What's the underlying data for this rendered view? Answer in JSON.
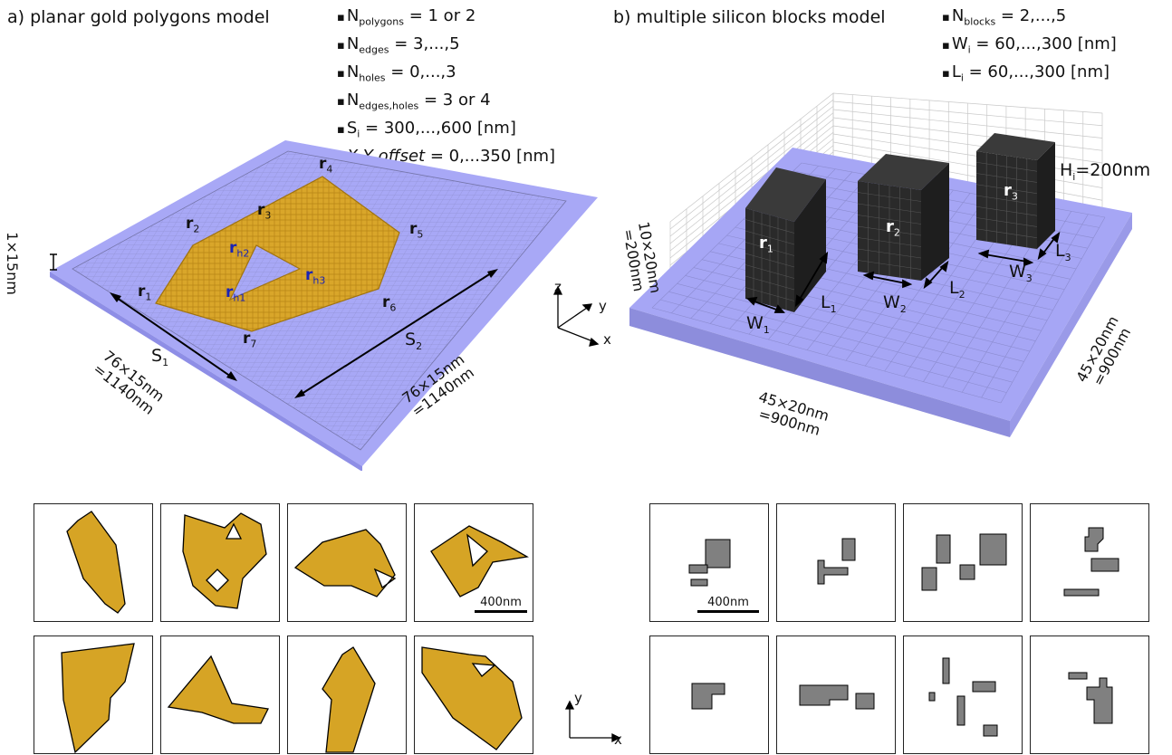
{
  "left_model": {
    "title": "a) planar gold polygons model",
    "params": [
      {
        "name": "N",
        "sub": "polygons",
        "value": " = 1 or 2"
      },
      {
        "name": "N",
        "sub": "edges",
        "value": " = 3,...,5"
      },
      {
        "name": "N",
        "sub": "holes",
        "value": " = 0,...,3"
      },
      {
        "name": "N",
        "sub": "edges,holes",
        "value": " = 3 or 4"
      },
      {
        "name": "S",
        "sub": "i",
        "value": " = 300,...,600 [nm]"
      },
      {
        "name": "X,Y offset",
        "sub": "",
        "value": " = 0,...350 [nm]"
      }
    ],
    "vertex_labels": [
      "r1",
      "r2",
      "r3",
      "r4",
      "r5",
      "r6",
      "r7"
    ],
    "hole_labels": [
      "rh1",
      "rh2",
      "rh3"
    ],
    "side_labels": {
      "s1": "S1",
      "s2": "S2"
    },
    "thickness": "1×15nm",
    "dim_front": [
      "76×15nm",
      "=1140nm"
    ],
    "dim_right": [
      "76×15nm",
      "=1140nm"
    ],
    "colors": {
      "gold": "#d4a125",
      "substrate": "#a6a6f5",
      "hole_label": "#1a23b5"
    }
  },
  "right_model": {
    "title": "b) multiple silicon blocks model",
    "params": [
      {
        "name": "N",
        "sub": "blocks",
        "value": " = 2,...,5"
      },
      {
        "name": "W",
        "sub": "i",
        "value": " = 60,...,300 [nm]"
      },
      {
        "name": "L",
        "sub": "i",
        "value": " = 60,...,300 [nm]"
      }
    ],
    "height_label": "H",
    "height_sub": "i",
    "height_value": "=200nm",
    "block_labels": [
      "r1",
      "r2",
      "r3"
    ],
    "w_labels": [
      "W1",
      "W2",
      "W3"
    ],
    "l_labels": [
      "L1",
      "L2",
      "L3"
    ],
    "dim_height": [
      "10×20nm",
      "=200nm"
    ],
    "dim_front": [
      "45×20nm",
      "=900nm"
    ],
    "dim_right": [
      "45×20nm",
      "=900nm"
    ],
    "colors": {
      "block": "#262626",
      "substrate": "#a6a6f5"
    }
  },
  "axes3d": {
    "x": "x",
    "y": "y",
    "z": "z"
  },
  "axes2d": {
    "x": "x",
    "y": "y"
  },
  "scale_bar": "400nm",
  "examples": {
    "polygon_color": "#d4a125",
    "block_color": "#808080"
  }
}
